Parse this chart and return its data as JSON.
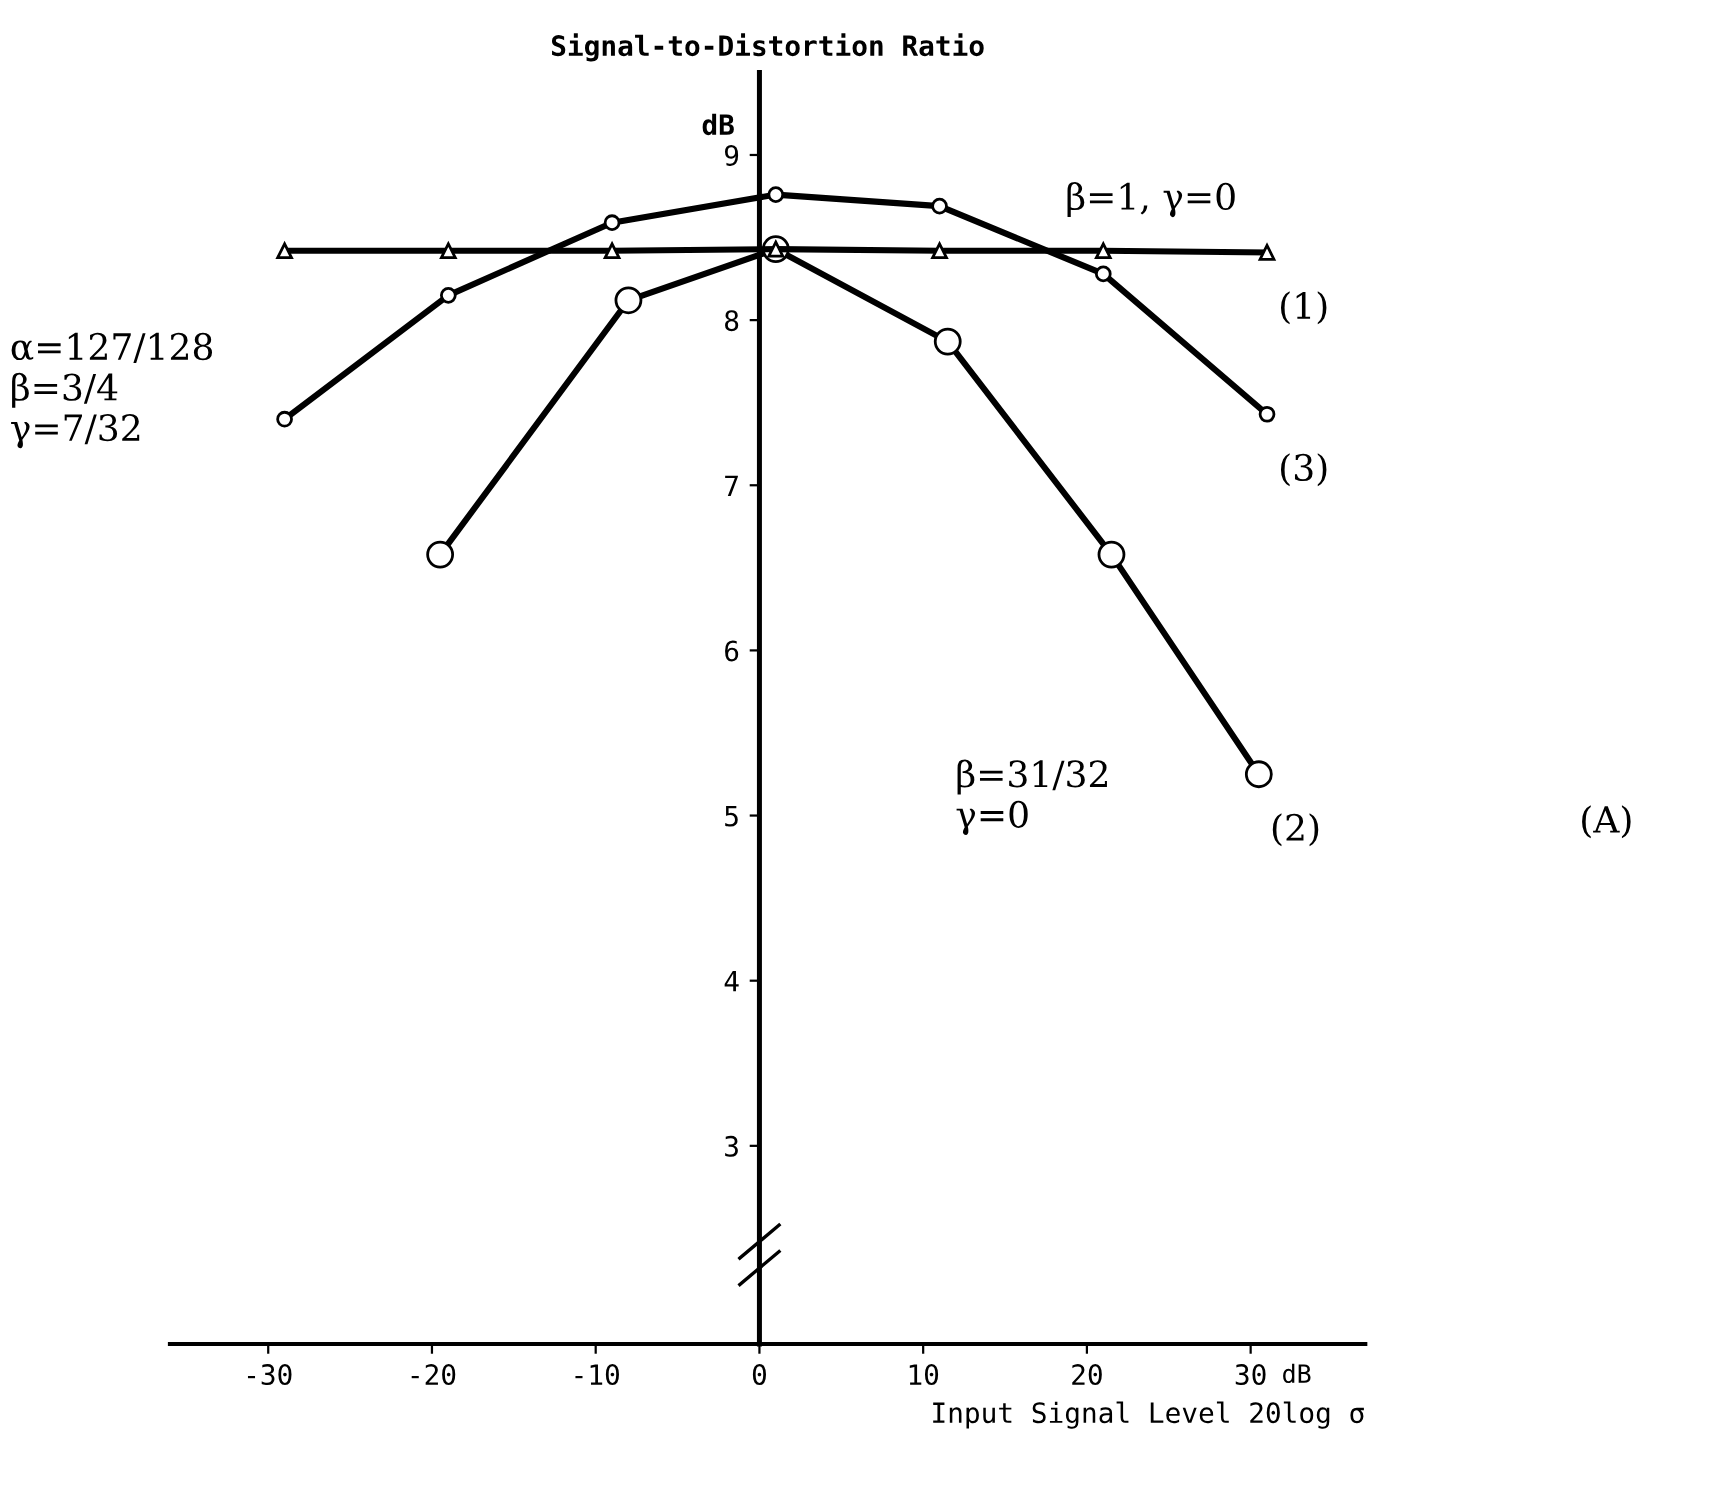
{
  "chart_data": {
    "type": "line",
    "title": "Signal-to-Distortion Ratio",
    "xlabel": "Input Signal Level 20log σ",
    "ylabel": "dB",
    "xlim": [
      -36,
      37
    ],
    "ylim": [
      1.8,
      9.5
    ],
    "xticks": [
      -30,
      -20,
      -10,
      0,
      10,
      20,
      30
    ],
    "yticks": [
      3,
      4,
      5,
      6,
      7,
      8,
      9
    ],
    "grid": false,
    "legend": false,
    "line_style": "solid",
    "series": [
      {
        "name": "(1)",
        "color": "#000000",
        "marker": "triangle",
        "x": [
          -29,
          -19,
          -9,
          1,
          11,
          21,
          31
        ],
        "values": [
          8.42,
          8.42,
          8.42,
          8.43,
          8.42,
          8.42,
          8.41
        ]
      },
      {
        "name": "(2)",
        "color": "#000000",
        "marker": "circle",
        "x": [
          -19.5,
          -8,
          1,
          11.5,
          21.5,
          30.5
        ],
        "values": [
          6.58,
          8.12,
          8.43,
          7.87,
          6.58,
          5.25
        ]
      },
      {
        "name": "(3)",
        "color": "#000000",
        "marker": "circle",
        "x": [
          -29,
          -19,
          -9,
          1,
          11,
          21,
          31
        ],
        "values": [
          7.4,
          8.15,
          8.59,
          8.76,
          8.69,
          8.28,
          7.43
        ]
      }
    ],
    "annotations": [
      "β=1, γ=0",
      "α=127/128\nβ=3/4\nγ=7/32",
      "β=31/32\nγ=0",
      "(A)",
      "dB"
    ]
  }
}
